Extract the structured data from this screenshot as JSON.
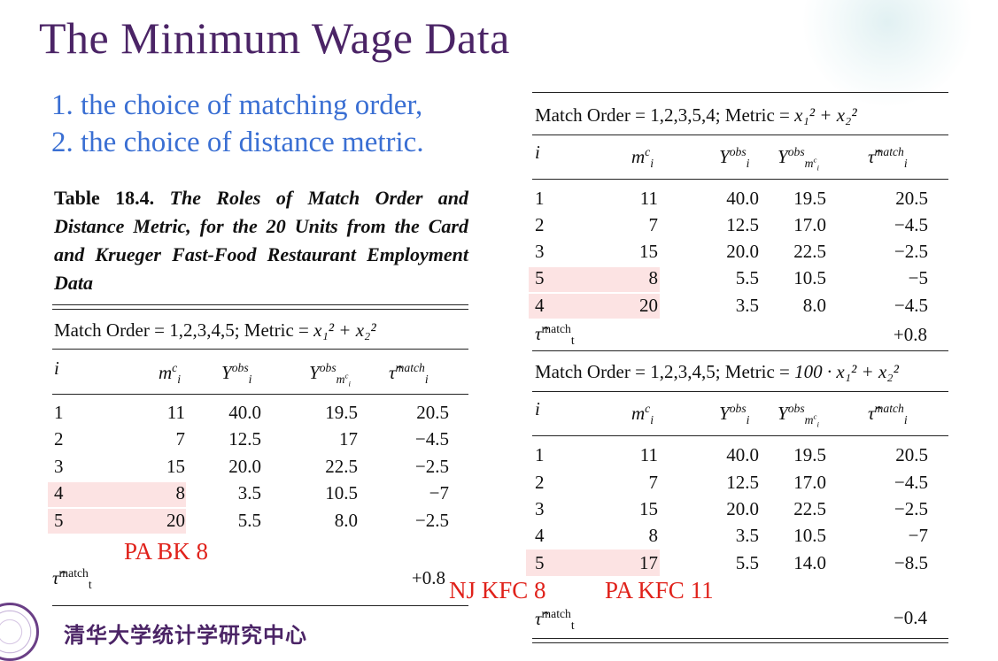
{
  "title": "The Minimum Wage Data",
  "points": [
    "1. the choice of matching order,",
    "2. the choice of distance metric."
  ],
  "caption": {
    "number": "Table 18.4.",
    "text": "The Roles of Match Order and Distance Metric, for the 20 Units from the Card and Krueger Fast-Food Restaurant Employment Data"
  },
  "col_headers": {
    "i": "i",
    "m": "m",
    "m_sup": "c",
    "m_sub": "i",
    "y": "Y",
    "y_sup": "obs",
    "y_sub": "i",
    "ym": "Y",
    "ym_sup": "obs",
    "ym_sub": "m",
    "ym_subsup": "c",
    "ym_subsub": "i",
    "tau": "τ̂",
    "tau_sup": "match",
    "tau_sub": "i"
  },
  "tables": [
    {
      "header_text": "Match Order = 1,2,3,4,5; Metric = ",
      "metric": "x₁² + x₂²",
      "rows": [
        [
          "1",
          "11",
          "40.0",
          "19.5",
          "20.5"
        ],
        [
          "2",
          "7",
          "12.5",
          "17",
          "−4.5"
        ],
        [
          "3",
          "15",
          "20.0",
          "22.5",
          "−2.5"
        ],
        [
          "4",
          "8",
          "3.5",
          "10.5",
          "−7"
        ],
        [
          "5",
          "20",
          "5.5",
          "8.0",
          "−2.5"
        ]
      ],
      "summary": {
        "label": "τ̂",
        "label_sup": "match",
        "label_sub": "t",
        "value": "+0.8"
      }
    },
    {
      "header_text": "Match Order = 1,2,3,5,4; Metric = ",
      "metric": "x₁² + x₂²",
      "rows": [
        [
          "1",
          "11",
          "40.0",
          "19.5",
          "20.5"
        ],
        [
          "2",
          "7",
          "12.5",
          "17.0",
          "−4.5"
        ],
        [
          "3",
          "15",
          "20.0",
          "22.5",
          "−2.5"
        ],
        [
          "5",
          "8",
          "5.5",
          "10.5",
          "−5"
        ],
        [
          "4",
          "20",
          "3.5",
          "8.0",
          "−4.5"
        ]
      ],
      "summary": {
        "label": "τ̂",
        "label_sup": "match",
        "label_sub": "t",
        "value": "+0.8"
      }
    },
    {
      "header_text": "Match Order = 1,2,3,4,5; Metric = ",
      "metric": "100 · x₁² + x₂²",
      "rows": [
        [
          "1",
          "11",
          "40.0",
          "19.5",
          "20.5"
        ],
        [
          "2",
          "7",
          "12.5",
          "17.0",
          "−4.5"
        ],
        [
          "3",
          "15",
          "20.0",
          "22.5",
          "−2.5"
        ],
        [
          "4",
          "8",
          "3.5",
          "10.5",
          "−7"
        ],
        [
          "5",
          "17",
          "5.5",
          "14.0",
          "−8.5"
        ]
      ],
      "summary": {
        "label": "τ̂",
        "label_sup": "match",
        "label_sub": "t",
        "value": "−0.4"
      }
    }
  ],
  "annotations": [
    "PA BK 8",
    "NJ KFC 8",
    "PA KFC 11"
  ],
  "footer": "清华大学统计学研究中心",
  "colors": {
    "title": "#4b2466",
    "points": "#3a6fd3",
    "annotation": "#e0221b",
    "highlight": "#fce3e3"
  }
}
